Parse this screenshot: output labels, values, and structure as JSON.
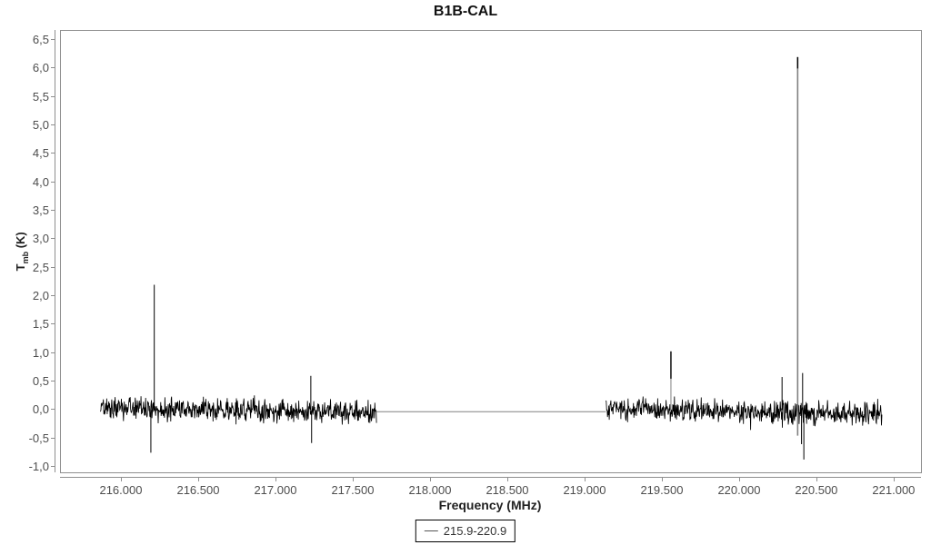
{
  "chart_data": {
    "type": "line",
    "title": "B1B-CAL",
    "xlabel": "Frequency (MHz)",
    "ylabel": "Tmb (K)",
    "ylabel_parts": {
      "main": "T",
      "sub": "mb",
      "unit": " (K)"
    },
    "legend": {
      "label": "215.9-220.9",
      "position": "bottom-center"
    },
    "grid": false,
    "xlim": [
      215.606,
      221.171
    ],
    "ylim": [
      -1.095,
      6.66
    ],
    "x_ticks": [
      {
        "value": 216.0,
        "label": "216.000"
      },
      {
        "value": 216.5,
        "label": "216.500"
      },
      {
        "value": 217.0,
        "label": "217.000"
      },
      {
        "value": 217.5,
        "label": "217.500"
      },
      {
        "value": 218.0,
        "label": "218.000"
      },
      {
        "value": 218.5,
        "label": "218.500"
      },
      {
        "value": 219.0,
        "label": "219.000"
      },
      {
        "value": 219.5,
        "label": "219.500"
      },
      {
        "value": 220.0,
        "label": "220.000"
      },
      {
        "value": 220.5,
        "label": "220.500"
      },
      {
        "value": 221.0,
        "label": "221.000"
      }
    ],
    "y_ticks": [
      {
        "value": 6.5,
        "label": "6,5"
      },
      {
        "value": 6.0,
        "label": "6,0"
      },
      {
        "value": 5.5,
        "label": "5,5"
      },
      {
        "value": 5.0,
        "label": "5,0"
      },
      {
        "value": 4.5,
        "label": "4,5"
      },
      {
        "value": 4.0,
        "label": "4,0"
      },
      {
        "value": 3.5,
        "label": "3,5"
      },
      {
        "value": 3.0,
        "label": "3,0"
      },
      {
        "value": 2.5,
        "label": "2,5"
      },
      {
        "value": 2.0,
        "label": "2,0"
      },
      {
        "value": 1.5,
        "label": "1,5"
      },
      {
        "value": 1.0,
        "label": "1,0"
      },
      {
        "value": 0.5,
        "label": "0,5"
      },
      {
        "value": 0.0,
        "label": "0,0"
      },
      {
        "value": -0.5,
        "label": "-0,5"
      },
      {
        "value": -1.0,
        "label": "-1,0"
      }
    ],
    "series": [
      {
        "name": "215.9-220.9",
        "color": "#000000",
        "noise_segments": [
          {
            "x_range": [
              215.862,
              217.648
            ],
            "baseline_start": 0.02,
            "baseline_end": -0.04,
            "amplitude": 0.25
          },
          {
            "x_range": [
              219.132,
              220.918
            ],
            "baseline_start": 0.03,
            "baseline_end": -0.08,
            "amplitude": 0.25
          }
        ],
        "gap_line": {
          "x_range": [
            217.648,
            219.132
          ],
          "y": -0.03,
          "color": "#808080"
        },
        "spikes": [
          {
            "x": 216.188,
            "y_from": 0.0,
            "y_to": -0.75,
            "color": "#000000",
            "width": 1
          },
          {
            "x": 216.21,
            "y_from": 0.0,
            "y_to": 2.2,
            "color": "#000000",
            "width": 1
          },
          {
            "x": 217.223,
            "y_from": 0.0,
            "y_to": 0.6,
            "color": "#000000",
            "width": 1
          },
          {
            "x": 217.228,
            "y_from": 0.0,
            "y_to": -0.58,
            "color": "#000000",
            "width": 1
          },
          {
            "x": 219.553,
            "y_from": 0.0,
            "y_to": 1.03,
            "color": "#808080",
            "width": 1
          },
          {
            "x": 219.553,
            "y_from": 0.55,
            "y_to": 1.03,
            "color": "#000000",
            "width": 1.4
          },
          {
            "x": 220.272,
            "y_from": 0.0,
            "y_to": 0.58,
            "color": "#000000",
            "width": 1
          },
          {
            "x": 220.373,
            "y_from": -0.45,
            "y_to": 6.2,
            "color": "#808080",
            "width": 1.6
          },
          {
            "x": 220.373,
            "y_from": 6.0,
            "y_to": 6.2,
            "color": "#000000",
            "width": 1.4
          },
          {
            "x": 220.398,
            "y_from": 0.0,
            "y_to": -0.6,
            "color": "#000000",
            "width": 1
          },
          {
            "x": 220.405,
            "y_from": 0.0,
            "y_to": 0.65,
            "color": "#000000",
            "width": 1
          },
          {
            "x": 220.413,
            "y_from": 0.0,
            "y_to": -0.87,
            "color": "#000000",
            "width": 1
          }
        ]
      }
    ]
  }
}
